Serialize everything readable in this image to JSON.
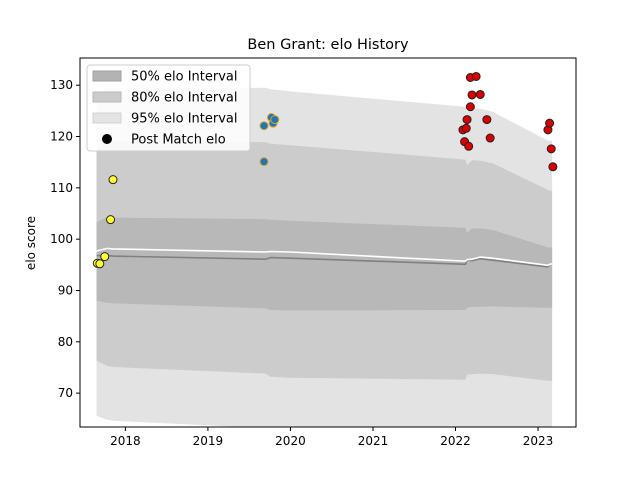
{
  "chart_data": {
    "type": "area",
    "title": "Ben Grant: elo History",
    "xlabel": "",
    "ylabel": "elo score",
    "xlim": [
      2017.45,
      2023.46
    ],
    "ylim": [
      63.4,
      135.3
    ],
    "xticks": [
      2018,
      2019,
      2020,
      2021,
      2022,
      2023
    ],
    "xtick_labels": [
      "2018",
      "2019",
      "2020",
      "2021",
      "2022",
      "2023"
    ],
    "yticks": [
      70,
      80,
      90,
      100,
      110,
      120,
      130
    ],
    "ytick_labels": [
      "70",
      "80",
      "90",
      "100",
      "110",
      "120",
      "130"
    ],
    "grid": false,
    "legend_position": "top-left",
    "legend": [
      {
        "label": "50% elo Interval",
        "kind": "band",
        "color": "#b3b3b3"
      },
      {
        "label": "80% elo Interval",
        "kind": "band",
        "color": "#cccccc"
      },
      {
        "label": "95% elo Interval",
        "kind": "band",
        "color": "#e3e3e3"
      },
      {
        "label": "Post Match elo",
        "kind": "marker",
        "color": "#000000"
      }
    ],
    "bands": {
      "x": [
        2017.65,
        2017.78,
        2017.85,
        2019.7,
        2019.76,
        2020.0,
        2022.12,
        2022.14,
        2022.2,
        2022.3,
        2022.45,
        2023.12,
        2023.14,
        2023.17
      ],
      "p95_upper": [
        127.8,
        129.4,
        129.4,
        129.5,
        129.2,
        128.8,
        125.8,
        124.8,
        125.5,
        125.4,
        124.8,
        119.2,
        119.2,
        119.2
      ],
      "p80_upper": [
        117.0,
        119.2,
        119.1,
        118.9,
        118.6,
        118.3,
        115.5,
        114.4,
        115.4,
        115.3,
        114.8,
        109.6,
        109.4,
        109.4
      ],
      "p50_upper": [
        103.3,
        104.3,
        104.2,
        103.9,
        103.8,
        103.6,
        102.2,
        101.2,
        102.1,
        102.1,
        101.8,
        98.4,
        98.4,
        98.4
      ],
      "p50_lower": [
        88.0,
        87.6,
        87.5,
        86.5,
        86.2,
        86.1,
        86.2,
        86.6,
        86.8,
        86.8,
        86.9,
        86.6,
        86.6,
        86.7
      ],
      "p80_lower": [
        76.3,
        75.3,
        75.1,
        73.8,
        73.2,
        73.0,
        72.6,
        73.6,
        73.7,
        73.8,
        73.7,
        72.4,
        72.4,
        72.4
      ],
      "p95_lower": [
        65.6,
        64.8,
        64.6,
        63.2,
        62.6,
        62.4,
        61.9,
        62.5,
        62.6,
        62.6,
        62.4,
        60.4,
        60.6,
        59.8
      ]
    },
    "series": [
      {
        "color": "#808080",
        "x": [
          2017.65,
          2017.78,
          2017.85,
          2019.7,
          2019.76,
          2020.0,
          2022.12,
          2022.14,
          2022.2,
          2022.3,
          2022.45,
          2023.12,
          2023.14,
          2023.17
        ],
        "y": [
          96.8,
          96.8,
          96.7,
          96.1,
          96.4,
          96.3,
          95.1,
          95.9,
          95.8,
          96.2,
          95.9,
          94.6,
          95.1,
          95.2
        ]
      },
      {
        "color": "#ffffff",
        "x": [
          2017.65,
          2017.78,
          2017.85,
          2019.7,
          2019.76,
          2020.0,
          2022.12,
          2022.14,
          2022.2,
          2022.3,
          2022.45,
          2023.12,
          2023.14,
          2023.17
        ],
        "y": [
          97.7,
          98.2,
          98.1,
          97.5,
          97.6,
          97.5,
          95.7,
          96.0,
          96.1,
          96.5,
          96.3,
          94.9,
          95.1,
          95.2
        ]
      }
    ],
    "points": [
      {
        "x": 2017.66,
        "y": 95.3,
        "fill": "#ffff33",
        "edge": "#222222"
      },
      {
        "x": 2017.69,
        "y": 95.2,
        "fill": "#ffff33",
        "edge": "#222222"
      },
      {
        "x": 2017.75,
        "y": 96.6,
        "fill": "#ffff33",
        "edge": "#222222"
      },
      {
        "x": 2017.82,
        "y": 103.8,
        "fill": "#ffff33",
        "edge": "#222222"
      },
      {
        "x": 2017.85,
        "y": 111.6,
        "fill": "#ffff33",
        "edge": "#222222"
      },
      {
        "x": 2019.68,
        "y": 115.1,
        "fill": "#1f77b4",
        "edge": "#e0a030"
      },
      {
        "x": 2019.68,
        "y": 122.1,
        "fill": "#1f77b4",
        "edge": "#e0a030"
      },
      {
        "x": 2019.77,
        "y": 123.7,
        "fill": "#1f77b4",
        "edge": "#e0a030"
      },
      {
        "x": 2019.79,
        "y": 122.6,
        "fill": "#1f77b4",
        "edge": "#e0a030"
      },
      {
        "x": 2019.81,
        "y": 123.3,
        "fill": "#1f77b4",
        "edge": "#e0a030"
      },
      {
        "x": 2022.09,
        "y": 121.3,
        "fill": "#dd0000",
        "edge": "#222222"
      },
      {
        "x": 2022.11,
        "y": 119.0,
        "fill": "#dd0000",
        "edge": "#222222"
      },
      {
        "x": 2022.13,
        "y": 121.6,
        "fill": "#dd0000",
        "edge": "#222222"
      },
      {
        "x": 2022.14,
        "y": 123.3,
        "fill": "#dd0000",
        "edge": "#222222"
      },
      {
        "x": 2022.16,
        "y": 118.1,
        "fill": "#dd0000",
        "edge": "#222222"
      },
      {
        "x": 2022.18,
        "y": 125.8,
        "fill": "#dd0000",
        "edge": "#222222"
      },
      {
        "x": 2022.18,
        "y": 131.5,
        "fill": "#dd0000",
        "edge": "#222222"
      },
      {
        "x": 2022.2,
        "y": 128.1,
        "fill": "#dd0000",
        "edge": "#222222"
      },
      {
        "x": 2022.25,
        "y": 131.7,
        "fill": "#dd0000",
        "edge": "#222222"
      },
      {
        "x": 2022.3,
        "y": 128.2,
        "fill": "#dd0000",
        "edge": "#222222"
      },
      {
        "x": 2022.38,
        "y": 123.3,
        "fill": "#dd0000",
        "edge": "#222222"
      },
      {
        "x": 2022.42,
        "y": 119.7,
        "fill": "#dd0000",
        "edge": "#222222"
      },
      {
        "x": 2023.12,
        "y": 121.3,
        "fill": "#dd0000",
        "edge": "#222222"
      },
      {
        "x": 2023.14,
        "y": 122.6,
        "fill": "#dd0000",
        "edge": "#222222"
      },
      {
        "x": 2023.16,
        "y": 117.6,
        "fill": "#dd0000",
        "edge": "#222222"
      },
      {
        "x": 2023.18,
        "y": 114.1,
        "fill": "#dd0000",
        "edge": "#222222"
      }
    ]
  }
}
